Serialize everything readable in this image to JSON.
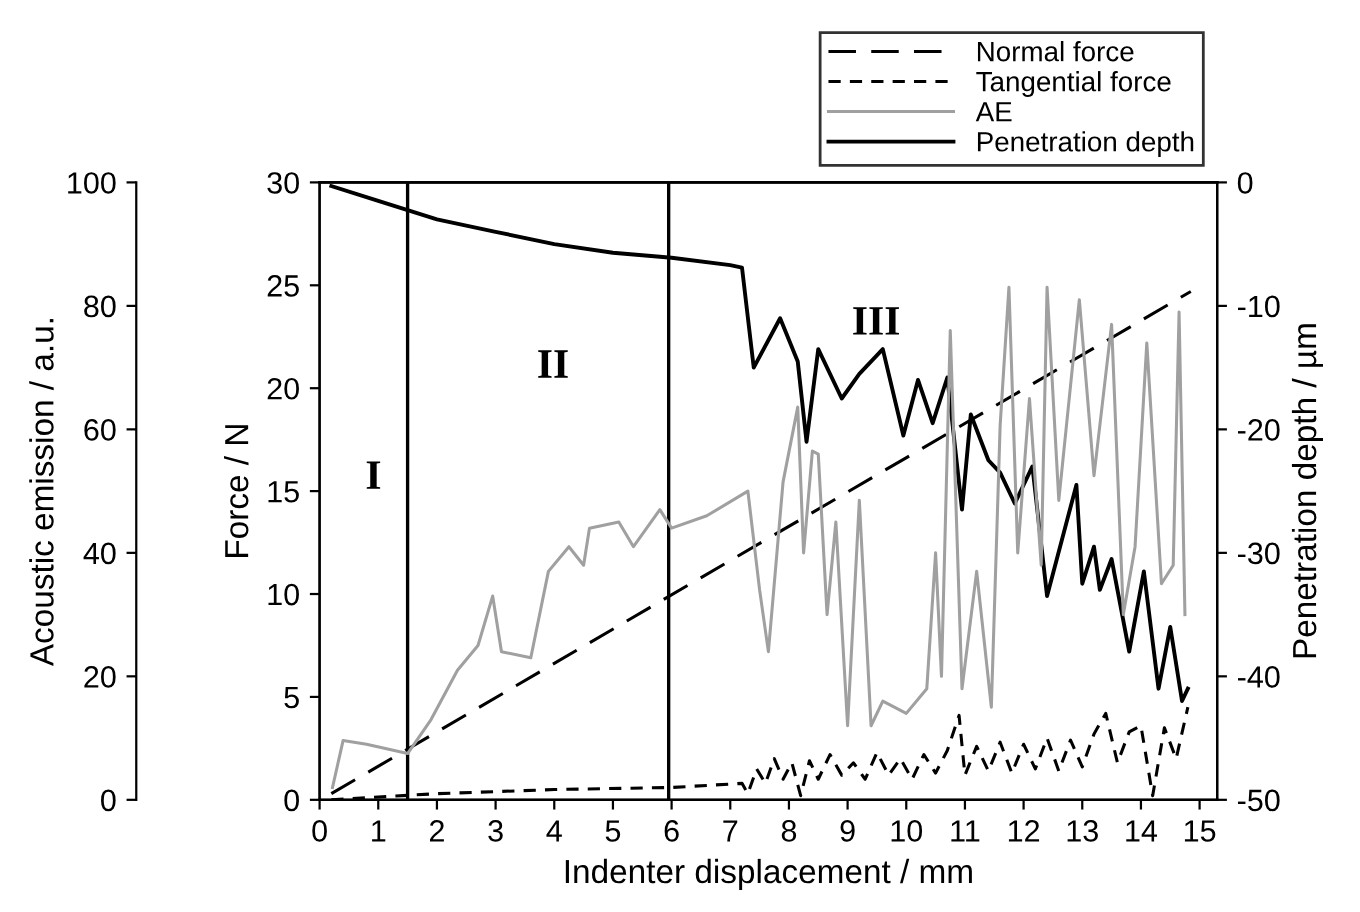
{
  "chart_data": {
    "type": "line",
    "xlabel": "Indenter displacement / mm",
    "ylabel": "Force / N",
    "y2label": "Penetration depth / µm",
    "y3label": "Acoustic emission / a.u.",
    "xlim": [
      0,
      15.3
    ],
    "xticks": [
      0,
      1,
      2,
      3,
      4,
      5,
      6,
      7,
      8,
      9,
      10,
      11,
      12,
      13,
      14,
      15
    ],
    "ylim": [
      0,
      30
    ],
    "yticks": [
      0,
      5,
      10,
      15,
      20,
      25,
      30
    ],
    "y2lim": [
      -50,
      0
    ],
    "y2ticks": [
      -50,
      -40,
      -30,
      -20,
      -10,
      0
    ],
    "y3lim": [
      0,
      100
    ],
    "y3ticks": [
      0,
      20,
      40,
      60,
      80,
      100
    ],
    "legend": "top right",
    "grid": false,
    "ref_lines": [
      {
        "axis": "x",
        "value": 1.5,
        "color": "#000000"
      },
      {
        "axis": "x",
        "value": 5.95,
        "color": "#000000"
      }
    ],
    "annotations": [
      "I",
      "II",
      "III"
    ],
    "series": [
      {
        "name": "Normal force",
        "color": "#000000",
        "line_style": "dashed",
        "x": [
          0.2,
          14.85
        ],
        "values": [
          0.3,
          24.7
        ]
      },
      {
        "name": "Tangential force",
        "color": "#000000",
        "line_style": "dashed",
        "x": [
          0.2,
          2,
          4,
          6,
          7.2,
          7.3,
          7.45,
          7.6,
          7.75,
          7.9,
          8.05,
          8.2,
          8.35,
          8.5,
          8.7,
          8.9,
          9.1,
          9.3,
          9.5,
          9.7,
          9.9,
          10.1,
          10.3,
          10.5,
          10.7,
          10.9,
          11.0,
          11.2,
          11.4,
          11.6,
          11.8,
          12.0,
          12.2,
          12.4,
          12.6,
          12.8,
          13.0,
          13.2,
          13.4,
          13.6,
          13.8,
          14.0,
          14.2,
          14.4,
          14.6,
          14.8
        ],
        "values": [
          0,
          0.3,
          0.5,
          0.6,
          0.8,
          0.3,
          1.5,
          0.8,
          2.0,
          1.0,
          1.8,
          0.2,
          1.9,
          1.0,
          2.2,
          1.2,
          1.8,
          1.0,
          2.3,
          1.2,
          2.0,
          1.0,
          2.2,
          1.3,
          2.4,
          4.1,
          1.2,
          2.6,
          1.4,
          2.8,
          1.3,
          2.7,
          1.5,
          3.0,
          1.4,
          2.9,
          1.6,
          3.2,
          4.2,
          1.8,
          3.3,
          3.6,
          0.2,
          3.5,
          2.0,
          4.5
        ]
      },
      {
        "name": "AE",
        "color": "#a0a0a0",
        "line_style": "solid",
        "axis": "y3",
        "x": [
          0.22,
          0.4,
          0.8,
          1.5,
          1.9,
          2.35,
          2.7,
          2.95,
          3.1,
          3.6,
          3.9,
          4.25,
          4.5,
          4.6,
          5.1,
          5.35,
          5.8,
          6.0,
          6.6,
          7.3,
          7.5,
          7.65,
          7.9,
          8.15,
          8.25,
          8.4,
          8.5,
          8.65,
          8.8,
          9.0,
          9.2,
          9.4,
          9.6,
          10.0,
          10.35,
          10.5,
          10.6,
          10.75,
          10.95,
          11.2,
          11.45,
          11.6,
          11.75,
          11.9,
          12.1,
          12.3,
          12.4,
          12.6,
          12.95,
          13.2,
          13.5,
          13.7,
          13.9,
          14.1,
          14.35,
          14.55,
          14.65,
          14.75
        ],
        "values": [
          2,
          9.6,
          9,
          7.5,
          13,
          21,
          25,
          33,
          24,
          23,
          37,
          41,
          38,
          44,
          45,
          41,
          47,
          44,
          46,
          50,
          34,
          24,
          51.5,
          63.6,
          40,
          56.5,
          56,
          30,
          45,
          12,
          48.5,
          12,
          16,
          14,
          18,
          40,
          20,
          76,
          18,
          37,
          15,
          60.6,
          83,
          40,
          65,
          38,
          83,
          48.5,
          81,
          52.5,
          77,
          30,
          41,
          74,
          35,
          38,
          79,
          30
        ]
      },
      {
        "name": "Penetration depth",
        "color": "#000000",
        "line_style": "solid",
        "axis": "y2",
        "x": [
          0.2,
          1,
          2,
          3,
          4,
          5,
          6,
          7,
          7.2,
          7.4,
          7.85,
          8.15,
          8.3,
          8.5,
          8.9,
          9.2,
          9.6,
          9.95,
          10.2,
          10.45,
          10.7,
          10.95,
          11.1,
          11.4,
          11.6,
          11.85,
          12.15,
          12.4,
          12.9,
          13.0,
          13.2,
          13.3,
          13.5,
          13.8,
          14.05,
          14.3,
          14.5,
          14.7,
          14.8
        ],
        "values": [
          -0.3,
          -1.5,
          -3.0,
          -4.0,
          -5.0,
          -5.7,
          -6.1,
          -6.7,
          -6.9,
          -15,
          -11,
          -14.5,
          -21,
          -13.5,
          -17.5,
          -15.5,
          -13.5,
          -20.5,
          -16,
          -19.5,
          -15.8,
          -26.5,
          -18.8,
          -22.5,
          -23.5,
          -26,
          -23,
          -33.5,
          -24.5,
          -32.5,
          -29.5,
          -33,
          -30.5,
          -38,
          -31.5,
          -41,
          -36,
          -42,
          -41
        ]
      }
    ]
  }
}
